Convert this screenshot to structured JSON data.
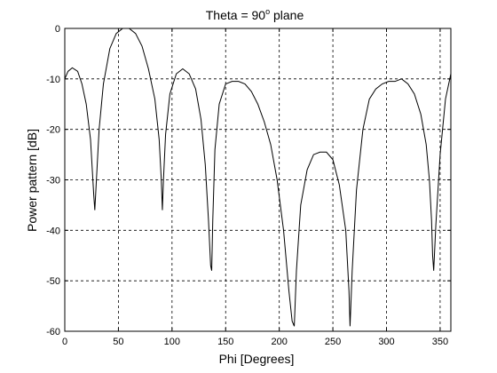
{
  "chart_data": {
    "type": "line",
    "title_main": "Theta = 90",
    "title_sup": "o",
    "title_end": " plane",
    "xlabel": "Phi [Degrees]",
    "ylabel": "Power pattern [dB]",
    "xlim": [
      0,
      360
    ],
    "ylim": [
      -60,
      0
    ],
    "xticks": [
      0,
      50,
      100,
      150,
      200,
      250,
      300,
      350
    ],
    "yticks": [
      0,
      -10,
      -20,
      -30,
      -40,
      -50,
      -60
    ],
    "grid": true,
    "series": [
      {
        "x": [
          0,
          3,
          7,
          12,
          16,
          20,
          24,
          27,
          28,
          29,
          32,
          36,
          42,
          48,
          54,
          60,
          66,
          72,
          78,
          84,
          88,
          90,
          91,
          92,
          94,
          98,
          104,
          110,
          116,
          122,
          127,
          131,
          134,
          136,
          137,
          138,
          140,
          144,
          150,
          156,
          162,
          168,
          174,
          180,
          186,
          192,
          198,
          204,
          209,
          212,
          214,
          216,
          220,
          226,
          232,
          238,
          244,
          250,
          256,
          262,
          265,
          266,
          268,
          272,
          278,
          284,
          290,
          296,
          302,
          308,
          314,
          320,
          326,
          332,
          337,
          340,
          342,
          343,
          344,
          346,
          350,
          355,
          360
        ],
        "y": [
          -10,
          -8.5,
          -7.8,
          -8.5,
          -11,
          -15,
          -22,
          -33,
          -36,
          -32,
          -20,
          -11,
          -4,
          -1,
          0,
          0,
          -1,
          -3.5,
          -8,
          -14,
          -22,
          -30,
          -36,
          -30,
          -21,
          -13,
          -9,
          -8,
          -9,
          -12,
          -18,
          -27,
          -38,
          -47,
          -48,
          -38,
          -24,
          -15,
          -11,
          -10.5,
          -10.5,
          -11,
          -12.5,
          -15,
          -18.5,
          -23,
          -30,
          -40,
          -52,
          -58,
          -59,
          -48,
          -35,
          -28,
          -25,
          -24.5,
          -24.5,
          -26,
          -31,
          -40,
          -52,
          -59,
          -48,
          -32,
          -20,
          -14,
          -12,
          -11,
          -10.5,
          -10.5,
          -10,
          -11,
          -13,
          -17,
          -23,
          -30,
          -38,
          -45,
          -48,
          -39,
          -25,
          -14,
          -9
        ]
      }
    ]
  }
}
